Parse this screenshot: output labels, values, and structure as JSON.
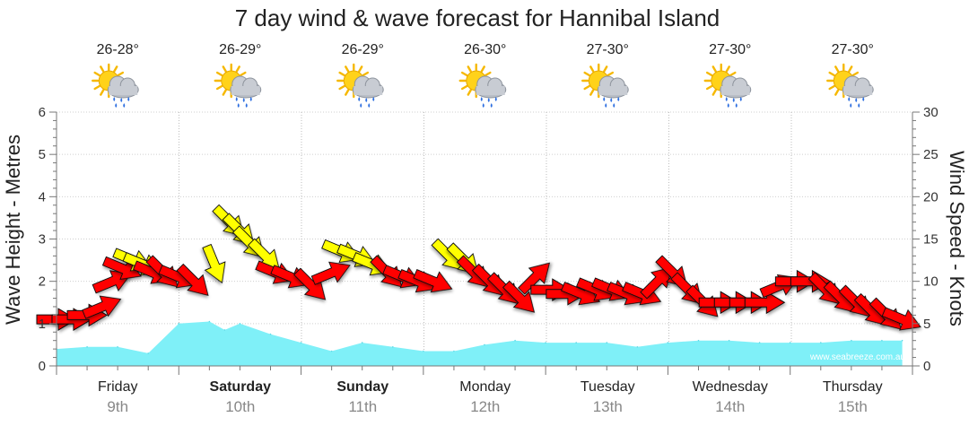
{
  "chart_data": {
    "type": "line",
    "title": "7 day wind & wave forecast for Hannibal Island",
    "ylabel_left": "Wave Height - Metres",
    "ylabel_right": "Wind Speed - Knots",
    "ylim_left": [
      0,
      6
    ],
    "ylim_right": [
      0,
      30
    ],
    "yticks_left": [
      "0",
      "1",
      "2",
      "3",
      "4",
      "5",
      "6"
    ],
    "yticks_right": [
      "0",
      "5",
      "10",
      "15",
      "20",
      "25",
      "30"
    ],
    "grid": true,
    "watermark": "www.seabreeze.com.au",
    "days": [
      {
        "name": "Friday",
        "date": "9th",
        "bold": false,
        "temp": "26-28°",
        "weather_icon": "partly-cloudy-rain-icon"
      },
      {
        "name": "Saturday",
        "date": "10th",
        "bold": true,
        "temp": "26-29°",
        "weather_icon": "partly-cloudy-rain-icon"
      },
      {
        "name": "Sunday",
        "date": "11th",
        "bold": true,
        "temp": "26-29°",
        "weather_icon": "partly-cloudy-rain-icon"
      },
      {
        "name": "Monday",
        "date": "12th",
        "bold": false,
        "temp": "26-30°",
        "weather_icon": "partly-cloudy-rain-icon"
      },
      {
        "name": "Tuesday",
        "date": "13th",
        "bold": false,
        "temp": "27-30°",
        "weather_icon": "partly-cloudy-rain-icon"
      },
      {
        "name": "Wednesday",
        "date": "14th",
        "bold": false,
        "temp": "27-30°",
        "weather_icon": "partly-cloudy-rain-icon"
      },
      {
        "name": "Thursday",
        "date": "15th",
        "bold": false,
        "temp": "27-30°",
        "weather_icon": "partly-cloudy-rain-icon"
      }
    ],
    "wave_series": {
      "name": "Wave Height",
      "unit": "m",
      "color": "#7ff0f8",
      "x_hours": [
        0,
        6,
        12,
        18,
        24,
        30,
        33,
        36,
        42,
        48,
        54,
        60,
        66,
        72,
        78,
        84,
        90,
        96,
        102,
        108,
        114,
        120,
        126,
        132,
        138,
        144,
        150,
        156,
        162,
        166
      ],
      "values": [
        0.4,
        0.45,
        0.45,
        0.3,
        1.0,
        1.05,
        0.85,
        1.0,
        0.75,
        0.55,
        0.35,
        0.55,
        0.45,
        0.35,
        0.35,
        0.5,
        0.6,
        0.55,
        0.55,
        0.55,
        0.45,
        0.55,
        0.6,
        0.6,
        0.55,
        0.55,
        0.55,
        0.6,
        0.6,
        0.6
      ]
    },
    "wind_series": {
      "name": "Wind Speed",
      "unit": "knots",
      "direction_note": "arrows point in the direction the wind blows toward",
      "colors": {
        "strong": "#ff0000",
        "moderate": "#ffff00"
      },
      "points": [
        {
          "h": 0,
          "speed": 5.5,
          "dir": "E",
          "cat": "strong"
        },
        {
          "h": 3,
          "speed": 5.5,
          "dir": "E",
          "cat": "strong"
        },
        {
          "h": 6,
          "speed": 6,
          "dir": "E",
          "cat": "strong"
        },
        {
          "h": 9,
          "speed": 7,
          "dir": "ENE",
          "cat": "strong"
        },
        {
          "h": 11,
          "speed": 10,
          "dir": "ENE",
          "cat": "strong"
        },
        {
          "h": 13,
          "speed": 11.5,
          "dir": "ESE",
          "cat": "strong"
        },
        {
          "h": 15,
          "speed": 12.5,
          "dir": "ESE",
          "cat": "moderate"
        },
        {
          "h": 17,
          "speed": 12,
          "dir": "ESE",
          "cat": "moderate"
        },
        {
          "h": 19,
          "speed": 11,
          "dir": "ESE",
          "cat": "strong"
        },
        {
          "h": 21,
          "speed": 11,
          "dir": "SE",
          "cat": "strong"
        },
        {
          "h": 24,
          "speed": 10.5,
          "dir": "ESE",
          "cat": "strong"
        },
        {
          "h": 27,
          "speed": 10,
          "dir": "SE",
          "cat": "strong"
        },
        {
          "h": 31,
          "speed": 12,
          "dir": "SSE",
          "cat": "moderate"
        },
        {
          "h": 34,
          "speed": 17,
          "dir": "SE",
          "cat": "moderate"
        },
        {
          "h": 36,
          "speed": 16,
          "dir": "SE",
          "cat": "moderate"
        },
        {
          "h": 38,
          "speed": 14.5,
          "dir": "SE",
          "cat": "moderate"
        },
        {
          "h": 41,
          "speed": 13,
          "dir": "SE",
          "cat": "moderate"
        },
        {
          "h": 43,
          "speed": 11,
          "dir": "ESE",
          "cat": "strong"
        },
        {
          "h": 46,
          "speed": 10.5,
          "dir": "ESE",
          "cat": "strong"
        },
        {
          "h": 50,
          "speed": 9.5,
          "dir": "SE",
          "cat": "strong"
        },
        {
          "h": 54,
          "speed": 11,
          "dir": "ENE",
          "cat": "strong"
        },
        {
          "h": 56,
          "speed": 13.5,
          "dir": "ESE",
          "cat": "moderate"
        },
        {
          "h": 59,
          "speed": 13,
          "dir": "ESE",
          "cat": "moderate"
        },
        {
          "h": 62,
          "speed": 12,
          "dir": "ESE",
          "cat": "moderate"
        },
        {
          "h": 65,
          "speed": 11,
          "dir": "SE",
          "cat": "strong"
        },
        {
          "h": 68,
          "speed": 10.5,
          "dir": "ESE",
          "cat": "strong"
        },
        {
          "h": 71,
          "speed": 10,
          "dir": "ESE",
          "cat": "strong"
        },
        {
          "h": 74,
          "speed": 10,
          "dir": "ESE",
          "cat": "strong"
        },
        {
          "h": 77,
          "speed": 13,
          "dir": "SE",
          "cat": "moderate"
        },
        {
          "h": 80,
          "speed": 12.5,
          "dir": "SE",
          "cat": "moderate"
        },
        {
          "h": 82,
          "speed": 11,
          "dir": "SE",
          "cat": "strong"
        },
        {
          "h": 85,
          "speed": 10,
          "dir": "SE",
          "cat": "strong"
        },
        {
          "h": 88,
          "speed": 9,
          "dir": "SE",
          "cat": "strong"
        },
        {
          "h": 91,
          "speed": 8,
          "dir": "SE",
          "cat": "strong"
        },
        {
          "h": 94,
          "speed": 10.5,
          "dir": "NE",
          "cat": "strong"
        },
        {
          "h": 97,
          "speed": 9,
          "dir": "E",
          "cat": "strong"
        },
        {
          "h": 100,
          "speed": 8.5,
          "dir": "E",
          "cat": "strong"
        },
        {
          "h": 103,
          "speed": 8.5,
          "dir": "ESE",
          "cat": "strong"
        },
        {
          "h": 106,
          "speed": 9,
          "dir": "ESE",
          "cat": "strong"
        },
        {
          "h": 109,
          "speed": 9,
          "dir": "ESE",
          "cat": "strong"
        },
        {
          "h": 112,
          "speed": 8.5,
          "dir": "ESE",
          "cat": "strong"
        },
        {
          "h": 115,
          "speed": 8.5,
          "dir": "ESE",
          "cat": "strong"
        },
        {
          "h": 118,
          "speed": 10,
          "dir": "NE",
          "cat": "strong"
        },
        {
          "h": 121,
          "speed": 11,
          "dir": "SE",
          "cat": "strong"
        },
        {
          "h": 124,
          "speed": 9,
          "dir": "SE",
          "cat": "strong"
        },
        {
          "h": 127,
          "speed": 7.5,
          "dir": "SE",
          "cat": "strong"
        },
        {
          "h": 130,
          "speed": 7.5,
          "dir": "E",
          "cat": "strong"
        },
        {
          "h": 133,
          "speed": 7.5,
          "dir": "E",
          "cat": "strong"
        },
        {
          "h": 136,
          "speed": 7.5,
          "dir": "E",
          "cat": "strong"
        },
        {
          "h": 139,
          "speed": 7.5,
          "dir": "E",
          "cat": "strong"
        },
        {
          "h": 142,
          "speed": 9.5,
          "dir": "ENE",
          "cat": "strong"
        },
        {
          "h": 145,
          "speed": 10,
          "dir": "E",
          "cat": "strong"
        },
        {
          "h": 148,
          "speed": 10,
          "dir": "E",
          "cat": "strong"
        },
        {
          "h": 151,
          "speed": 9,
          "dir": "SE",
          "cat": "strong"
        },
        {
          "h": 154,
          "speed": 8,
          "dir": "SE",
          "cat": "strong"
        },
        {
          "h": 157,
          "speed": 7.5,
          "dir": "SE",
          "cat": "strong"
        },
        {
          "h": 160,
          "speed": 6.5,
          "dir": "SE",
          "cat": "strong"
        },
        {
          "h": 163,
          "speed": 6,
          "dir": "SE",
          "cat": "strong"
        },
        {
          "h": 166,
          "speed": 5.5,
          "dir": "ESE",
          "cat": "strong"
        }
      ]
    }
  }
}
